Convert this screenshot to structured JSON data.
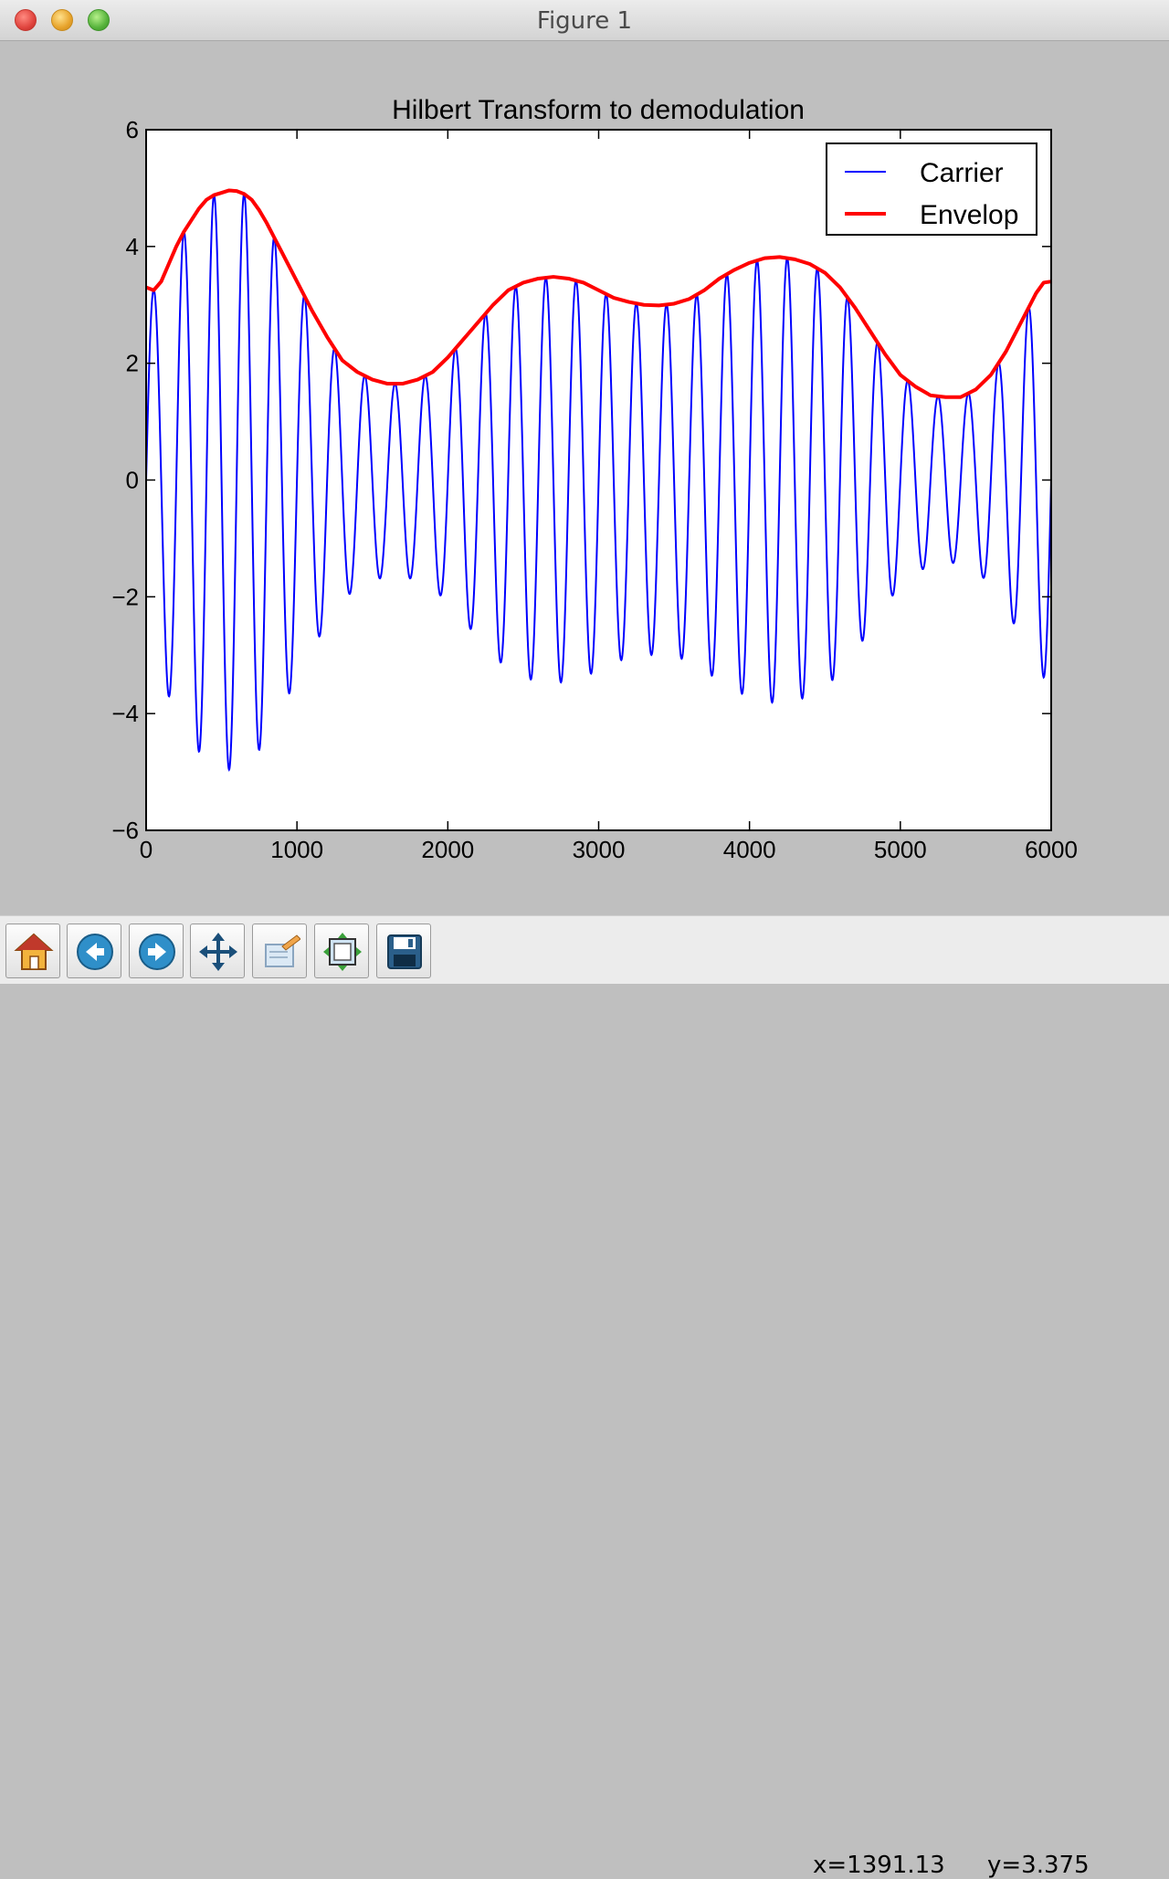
{
  "window": {
    "title": "Figure 1"
  },
  "chart_data": {
    "type": "line",
    "title": "Hilbert Transform to demodulation",
    "xlabel": "",
    "ylabel": "",
    "xlim": [
      0,
      6000
    ],
    "ylim": [
      -6,
      6
    ],
    "xticks": [
      0,
      1000,
      2000,
      3000,
      4000,
      5000,
      6000
    ],
    "yticks": [
      -6,
      -4,
      -2,
      0,
      2,
      4,
      6
    ],
    "xtick_labels": [
      "0",
      "1000",
      "2000",
      "3000",
      "4000",
      "5000",
      "6000"
    ],
    "ytick_labels": [
      "−6",
      "−4",
      "−2",
      "0",
      "2",
      "4",
      "6"
    ],
    "grid": false,
    "legend_position": "upper right",
    "carrier_cycles": 30,
    "series": [
      {
        "name": "Carrier",
        "color": "#0000ff",
        "style": "oscillation filled by envelope"
      },
      {
        "name": "Envelop",
        "color": "#ff0000",
        "x": [
          0,
          50,
          100,
          150,
          200,
          250,
          300,
          350,
          400,
          450,
          500,
          550,
          600,
          650,
          700,
          750,
          800,
          850,
          900,
          950,
          1000,
          1100,
          1200,
          1300,
          1400,
          1500,
          1600,
          1700,
          1800,
          1900,
          2000,
          2100,
          2200,
          2300,
          2400,
          2500,
          2600,
          2700,
          2800,
          2900,
          3000,
          3100,
          3200,
          3300,
          3400,
          3500,
          3600,
          3700,
          3800,
          3900,
          4000,
          4100,
          4200,
          4300,
          4400,
          4500,
          4600,
          4700,
          4800,
          4900,
          5000,
          5100,
          5200,
          5300,
          5400,
          5500,
          5600,
          5700,
          5800,
          5900,
          5950,
          6000
        ],
        "y": [
          3.3,
          3.25,
          3.4,
          3.7,
          4.0,
          4.25,
          4.45,
          4.65,
          4.8,
          4.88,
          4.92,
          4.96,
          4.95,
          4.9,
          4.8,
          4.62,
          4.4,
          4.15,
          3.9,
          3.65,
          3.4,
          2.9,
          2.45,
          2.05,
          1.85,
          1.72,
          1.65,
          1.65,
          1.72,
          1.85,
          2.1,
          2.4,
          2.7,
          3.0,
          3.25,
          3.38,
          3.45,
          3.48,
          3.45,
          3.38,
          3.25,
          3.12,
          3.05,
          3.0,
          2.99,
          3.02,
          3.1,
          3.25,
          3.45,
          3.6,
          3.72,
          3.8,
          3.82,
          3.78,
          3.7,
          3.55,
          3.3,
          2.95,
          2.55,
          2.15,
          1.8,
          1.6,
          1.45,
          1.42,
          1.42,
          1.55,
          1.8,
          2.2,
          2.7,
          3.2,
          3.38,
          3.4
        ]
      }
    ]
  },
  "toolbar": {
    "buttons": [
      {
        "name": "home-button",
        "icon": "home-icon"
      },
      {
        "name": "back-button",
        "icon": "back-arrow-icon"
      },
      {
        "name": "forward-button",
        "icon": "forward-arrow-icon"
      },
      {
        "name": "pan-button",
        "icon": "pan-icon"
      },
      {
        "name": "zoom-button",
        "icon": "zoom-rect-icon"
      },
      {
        "name": "subplots-button",
        "icon": "subplots-icon"
      },
      {
        "name": "save-button",
        "icon": "floppy-disk-icon"
      }
    ],
    "x_readout": "x=1391.13",
    "y_readout": "y=3.375"
  }
}
